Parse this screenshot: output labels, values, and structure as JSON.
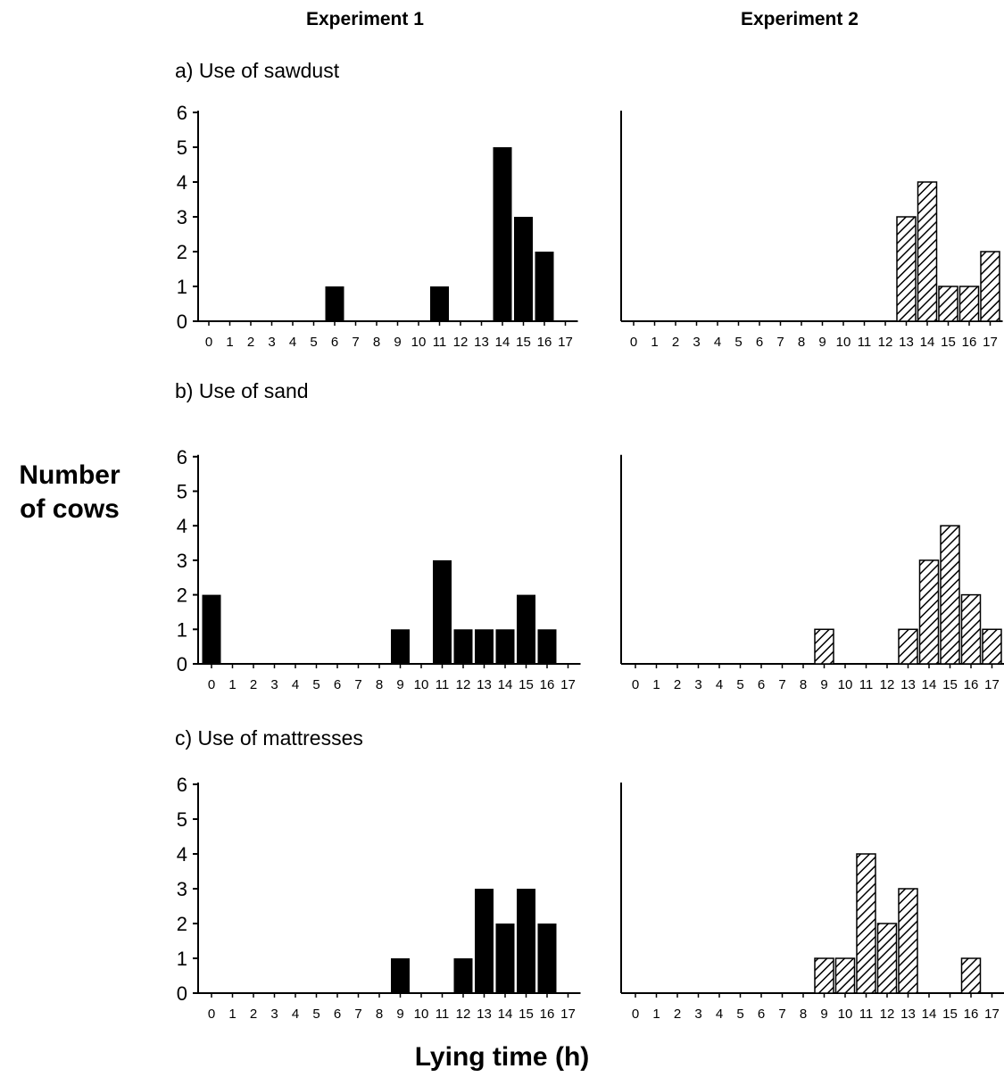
{
  "columns": {
    "left": "Experiment 1",
    "right": "Experiment 2"
  },
  "rows": [
    "a) Use of sawdust",
    "b) Use of sand",
    "c) Use of mattresses"
  ],
  "ylabel_line1": "Number",
  "ylabel_line2": "of cows",
  "xlabel": "Lying time (h)",
  "colors": {
    "exp1": "#000000",
    "exp2_stroke": "#000000"
  },
  "chart_data": [
    {
      "type": "bar",
      "panel": "a) Use of sawdust",
      "experiment": "Experiment 1",
      "categories": [
        "0",
        "1",
        "2",
        "3",
        "4",
        "5",
        "6",
        "7",
        "8",
        "9",
        "10",
        "11",
        "12",
        "13",
        "14",
        "15",
        "16",
        "17"
      ],
      "values": [
        0,
        0,
        0,
        0,
        0,
        0,
        1,
        0,
        0,
        0,
        0,
        1,
        0,
        0,
        5,
        3,
        2,
        0
      ],
      "yticks": [
        "0",
        "1",
        "2",
        "3",
        "4",
        "5",
        "6"
      ],
      "ylim": [
        0,
        6
      ],
      "fill": "solid"
    },
    {
      "type": "bar",
      "panel": "a) Use of sawdust",
      "experiment": "Experiment 2",
      "categories": [
        "0",
        "1",
        "2",
        "3",
        "4",
        "5",
        "6",
        "7",
        "8",
        "9",
        "10",
        "11",
        "12",
        "13",
        "14",
        "15",
        "16",
        "17"
      ],
      "values": [
        0,
        0,
        0,
        0,
        0,
        0,
        0,
        0,
        0,
        0,
        0,
        0,
        0,
        3,
        4,
        1,
        1,
        2
      ],
      "ylim": [
        0,
        6
      ],
      "fill": "hatched"
    },
    {
      "type": "bar",
      "panel": "b) Use of sand",
      "experiment": "Experiment 1",
      "categories": [
        "0",
        "1",
        "2",
        "3",
        "4",
        "5",
        "6",
        "7",
        "8",
        "9",
        "10",
        "11",
        "12",
        "13",
        "14",
        "15",
        "16",
        "17"
      ],
      "values": [
        2,
        0,
        0,
        0,
        0,
        0,
        0,
        0,
        0,
        1,
        0,
        3,
        1,
        1,
        1,
        2,
        1,
        0
      ],
      "yticks": [
        "0",
        "1",
        "2",
        "3",
        "4",
        "5",
        "6"
      ],
      "ylim": [
        0,
        6
      ],
      "fill": "solid"
    },
    {
      "type": "bar",
      "panel": "b) Use of sand",
      "experiment": "Experiment 2",
      "categories": [
        "0",
        "1",
        "2",
        "3",
        "4",
        "5",
        "6",
        "7",
        "8",
        "9",
        "10",
        "11",
        "12",
        "13",
        "14",
        "15",
        "16",
        "17"
      ],
      "values": [
        0,
        0,
        0,
        0,
        0,
        0,
        0,
        0,
        0,
        1,
        0,
        0,
        0,
        1,
        3,
        4,
        2,
        1
      ],
      "ylim": [
        0,
        6
      ],
      "fill": "hatched"
    },
    {
      "type": "bar",
      "panel": "c) Use of mattresses",
      "experiment": "Experiment 1",
      "categories": [
        "0",
        "1",
        "2",
        "3",
        "4",
        "5",
        "6",
        "7",
        "8",
        "9",
        "10",
        "11",
        "12",
        "13",
        "14",
        "15",
        "16",
        "17"
      ],
      "values": [
        0,
        0,
        0,
        0,
        0,
        0,
        0,
        0,
        0,
        1,
        0,
        0,
        1,
        3,
        2,
        3,
        2,
        0
      ],
      "yticks": [
        "0",
        "1",
        "2",
        "3",
        "4",
        "5",
        "6"
      ],
      "ylim": [
        0,
        6
      ],
      "fill": "solid"
    },
    {
      "type": "bar",
      "panel": "c) Use of mattresses",
      "experiment": "Experiment 2",
      "categories": [
        "0",
        "1",
        "2",
        "3",
        "4",
        "5",
        "6",
        "7",
        "8",
        "9",
        "10",
        "11",
        "12",
        "13",
        "14",
        "15",
        "16",
        "17"
      ],
      "values": [
        0,
        0,
        0,
        0,
        0,
        0,
        0,
        0,
        0,
        1,
        1,
        4,
        2,
        3,
        0,
        0,
        1,
        0
      ],
      "ylim": [
        0,
        6
      ],
      "fill": "hatched"
    }
  ]
}
